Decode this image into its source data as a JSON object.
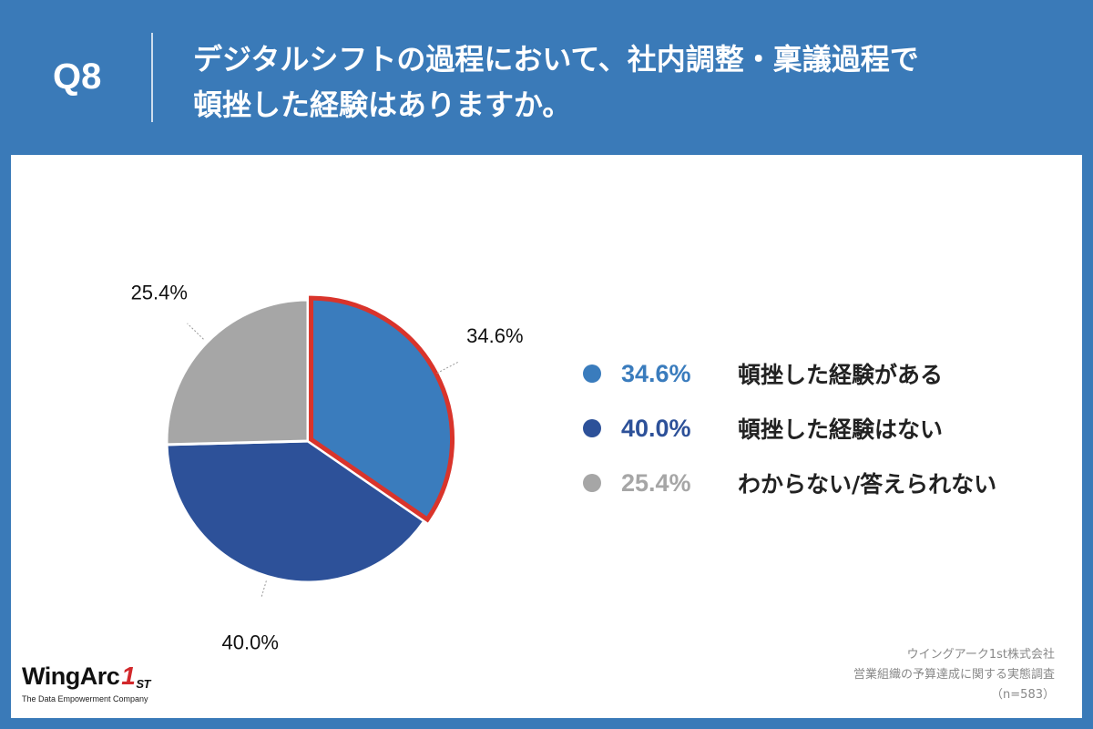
{
  "header": {
    "question_number": "Q8",
    "question_line1": "デジタルシフトの過程において、社内調整・稟議過程で",
    "question_line2": "頓挫した経験はありますか。"
  },
  "colors": {
    "background": "#3a7ab8",
    "highlight_border": "#d9342b",
    "slice_experienced": "#3a7cbd",
    "slice_not_experienced": "#2d5199",
    "slice_unknown": "#a6a6a6"
  },
  "chart_data": {
    "type": "pie",
    "title": "デジタルシフトの過程において、社内調整・稟議過程で頓挫した経験はありますか。",
    "categories": [
      "頓挫した経験がある",
      "頓挫した経験はない",
      "わからない/答えられない"
    ],
    "values": [
      34.6,
      40.0,
      25.4
    ],
    "value_labels": [
      "34.6%",
      "40.0%",
      "25.4%"
    ],
    "highlighted_index": 0,
    "legend_position": "right",
    "sample_size": "n=583"
  },
  "legend": [
    {
      "pct": "34.6%",
      "label": "頓挫した経験がある",
      "color": "#3a7cbd"
    },
    {
      "pct": "40.0%",
      "label": "頓挫した経験はない",
      "color": "#2d5199"
    },
    {
      "pct": "25.4%",
      "label": "わからない/答えられない",
      "color": "#a6a6a6"
    }
  ],
  "logo": {
    "brand": "WingArc",
    "mark": "1",
    "sup": "ST",
    "tagline": "The Data Empowerment Company"
  },
  "source": {
    "company": "ウイングアーク1st株式会社",
    "survey": "営業組織の予算達成に関する実態調査",
    "sample": "（n=583）"
  }
}
